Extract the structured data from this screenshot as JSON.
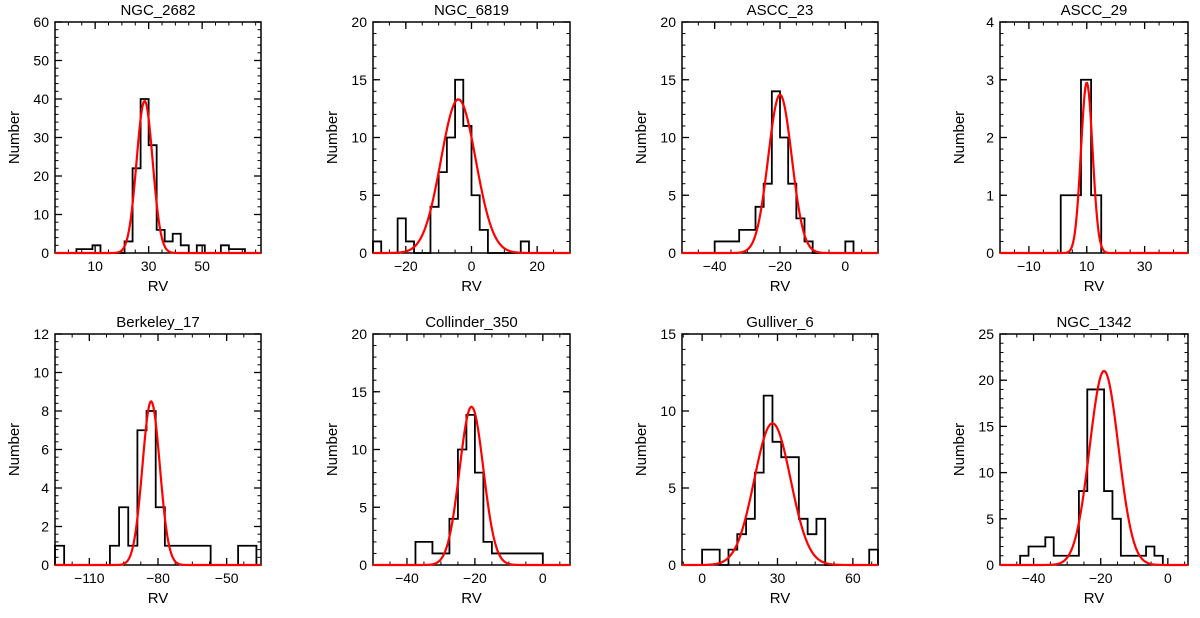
{
  "chart_data": [
    {
      "type": "bar",
      "title": "NGC_2682",
      "xlabel": "RV",
      "ylabel": "Number",
      "xlim": [
        -5,
        72
      ],
      "ylim": [
        0,
        60
      ],
      "xticks": [
        10,
        30,
        50
      ],
      "xtick_labels": [
        "10",
        "30",
        "50"
      ],
      "yticks": [
        0,
        10,
        20,
        30,
        40,
        50,
        60
      ],
      "ytick_labels": [
        "0",
        "10",
        "20",
        "30",
        "40",
        "50",
        "60"
      ],
      "histogram": {
        "bin_edges": [
          3,
          6,
          9,
          12,
          15,
          18,
          21,
          24,
          27,
          30,
          33,
          36,
          39,
          42,
          45,
          48,
          51,
          54,
          57,
          60,
          63,
          66
        ],
        "counts": [
          1,
          1,
          2,
          0,
          0,
          0,
          3,
          22,
          40,
          28,
          6,
          3,
          5,
          2,
          0,
          2,
          0,
          0,
          2,
          1,
          1
        ]
      },
      "gaussian_fit": {
        "amplitude": 39.5,
        "mean": 28.5,
        "sigma": 3.0
      },
      "fit_color": "#ff0000"
    },
    {
      "type": "bar",
      "title": "NGC_6819",
      "xlabel": "RV",
      "ylabel": "Number",
      "xlim": [
        -30,
        30
      ],
      "ylim": [
        0,
        20
      ],
      "xticks": [
        -20,
        0,
        20
      ],
      "xtick_labels": [
        "−20",
        "0",
        "20"
      ],
      "yticks": [
        0,
        5,
        10,
        15,
        20
      ],
      "ytick_labels": [
        "0",
        "5",
        "10",
        "15",
        "20"
      ],
      "histogram": {
        "bin_edges": [
          -30,
          -27.5,
          -25,
          -22.5,
          -20,
          -17.5,
          -15,
          -12.5,
          -10,
          -7.5,
          -5,
          -2.5,
          0,
          2.5,
          5,
          7.5,
          10,
          12.5,
          15,
          17.5,
          20
        ],
        "counts": [
          1,
          0,
          0,
          3,
          1,
          0,
          0,
          4,
          7,
          10,
          15,
          11,
          5,
          2,
          0,
          0,
          0,
          0,
          1,
          0
        ]
      },
      "gaussian_fit": {
        "amplitude": 13.3,
        "mean": -4.0,
        "sigma": 5.3
      },
      "fit_color": "#ff0000"
    },
    {
      "type": "bar",
      "title": "ASCC_23",
      "xlabel": "RV",
      "ylabel": "Number",
      "xlim": [
        -50,
        10
      ],
      "ylim": [
        0,
        20
      ],
      "xticks": [
        -40,
        -20,
        0
      ],
      "xtick_labels": [
        "−40",
        "−20",
        "0"
      ],
      "yticks": [
        0,
        5,
        10,
        15,
        20
      ],
      "ytick_labels": [
        "0",
        "5",
        "10",
        "15",
        "20"
      ],
      "histogram": {
        "bin_edges": [
          -40,
          -37.5,
          -35,
          -32.5,
          -30,
          -27.5,
          -25,
          -22.5,
          -20,
          -17.5,
          -15,
          -12.5,
          -10,
          -7.5,
          -5,
          -2.5,
          0,
          2.5,
          5
        ],
        "counts": [
          1,
          1,
          1,
          2,
          2,
          4,
          6,
          14,
          10,
          6,
          3,
          1,
          0,
          0,
          0,
          0,
          1,
          0
        ]
      },
      "gaussian_fit": {
        "amplitude": 13.7,
        "mean": -20.0,
        "sigma": 3.6
      },
      "fit_color": "#ff0000"
    },
    {
      "type": "bar",
      "title": "ASCC_29",
      "xlabel": "RV",
      "ylabel": "Number",
      "xlim": [
        -20,
        45
      ],
      "ylim": [
        0,
        4
      ],
      "xticks": [
        -10,
        10,
        30
      ],
      "xtick_labels": [
        "−10",
        "10",
        "30"
      ],
      "yticks": [
        0,
        1,
        2,
        3,
        4
      ],
      "ytick_labels": [
        "0",
        "1",
        "2",
        "3",
        "4"
      ],
      "histogram": {
        "bin_edges": [
          1,
          4.5,
          8,
          11.5,
          15
        ],
        "counts": [
          1,
          1,
          3,
          1
        ]
      },
      "gaussian_fit": {
        "amplitude": 2.95,
        "mean": 10.0,
        "sigma": 2.0
      },
      "fit_color": "#ff0000"
    },
    {
      "type": "bar",
      "title": "Berkeley_17",
      "xlabel": "RV",
      "ylabel": "Number",
      "xlim": [
        -125,
        -35
      ],
      "ylim": [
        0,
        12
      ],
      "xticks": [
        -110,
        -80,
        -50
      ],
      "xtick_labels": [
        "−110",
        "−80",
        "−50"
      ],
      "yticks": [
        0,
        2,
        4,
        6,
        8,
        10,
        12
      ],
      "ytick_labels": [
        "0",
        "2",
        "4",
        "6",
        "8",
        "10",
        "12"
      ],
      "histogram": {
        "bin_edges": [
          -125,
          -121,
          -117,
          -113,
          -109,
          -105,
          -101,
          -97,
          -93,
          -89,
          -85,
          -81,
          -77,
          -73,
          -69,
          -65,
          -61,
          -57,
          -53,
          -49,
          -45,
          -41,
          -37
        ],
        "counts": [
          1,
          0,
          0,
          0,
          0,
          0,
          1,
          3,
          1,
          7,
          8,
          3,
          1,
          1,
          1,
          1,
          1,
          0,
          0,
          0,
          1,
          1
        ]
      },
      "gaussian_fit": {
        "amplitude": 8.5,
        "mean": -83.0,
        "sigma": 3.8
      },
      "fit_color": "#ff0000"
    },
    {
      "type": "bar",
      "title": "Collinder_350",
      "xlabel": "RV",
      "ylabel": "Number",
      "xlim": [
        -50,
        8
      ],
      "ylim": [
        0,
        20
      ],
      "xticks": [
        -40,
        -20,
        0
      ],
      "xtick_labels": [
        "−40",
        "−20",
        "0"
      ],
      "yticks": [
        0,
        5,
        10,
        15,
        20
      ],
      "ytick_labels": [
        "0",
        "5",
        "10",
        "15",
        "20"
      ],
      "histogram": {
        "bin_edges": [
          -37.5,
          -35,
          -32.5,
          -30,
          -27.5,
          -25,
          -22.5,
          -20,
          -17.5,
          -15,
          -12.5,
          -10,
          -7.5,
          -5,
          -2.5,
          0
        ],
        "counts": [
          2,
          2,
          1,
          1,
          4,
          10,
          13,
          8,
          2,
          1,
          1,
          1,
          1,
          1,
          1
        ]
      },
      "gaussian_fit": {
        "amplitude": 13.7,
        "mean": -21.0,
        "sigma": 3.5
      },
      "fit_color": "#ff0000"
    },
    {
      "type": "bar",
      "title": "Gulliver_6",
      "xlabel": "RV",
      "ylabel": "Number",
      "xlim": [
        -8,
        70
      ],
      "ylim": [
        0,
        15
      ],
      "xticks": [
        0,
        30,
        60
      ],
      "xtick_labels": [
        "0",
        "30",
        "60"
      ],
      "yticks": [
        0,
        5,
        10,
        15
      ],
      "ytick_labels": [
        "0",
        "5",
        "10",
        "15"
      ],
      "histogram": {
        "bin_edges": [
          0,
          3.5,
          7,
          10.5,
          14,
          17.5,
          21,
          24.5,
          28,
          31.5,
          35,
          38.5,
          42,
          45.5,
          49,
          52.5,
          56,
          59.5,
          63,
          66.5,
          70
        ],
        "counts": [
          1,
          1,
          0,
          1,
          2,
          3,
          6,
          11,
          8,
          7,
          7,
          3,
          2,
          3,
          0,
          0,
          0,
          0,
          0,
          1
        ]
      },
      "gaussian_fit": {
        "amplitude": 9.2,
        "mean": 28.0,
        "sigma": 7.2
      },
      "fit_color": "#ff0000"
    },
    {
      "type": "bar",
      "title": "NGC_1342",
      "xlabel": "RV",
      "ylabel": "Number",
      "xlim": [
        -50,
        6
      ],
      "ylim": [
        0,
        25
      ],
      "xticks": [
        -40,
        -20,
        0
      ],
      "xtick_labels": [
        "−40",
        "−20",
        "0"
      ],
      "yticks": [
        0,
        5,
        10,
        15,
        20,
        25
      ],
      "ytick_labels": [
        "0",
        "5",
        "10",
        "15",
        "20",
        "25"
      ],
      "histogram": {
        "bin_edges": [
          -44,
          -41.5,
          -39,
          -36.5,
          -34,
          -31.5,
          -29,
          -26.5,
          -24,
          -21.5,
          -19,
          -16.5,
          -14,
          -11.5,
          -9,
          -6.5,
          -4,
          -1.5
        ],
        "counts": [
          1,
          2,
          2,
          3,
          1,
          1,
          1,
          8,
          19,
          19,
          8,
          5,
          1,
          1,
          1,
          2,
          1
        ]
      },
      "gaussian_fit": {
        "amplitude": 21.0,
        "mean": -19.0,
        "sigma": 4.3
      },
      "fit_color": "#ff0000"
    }
  ]
}
